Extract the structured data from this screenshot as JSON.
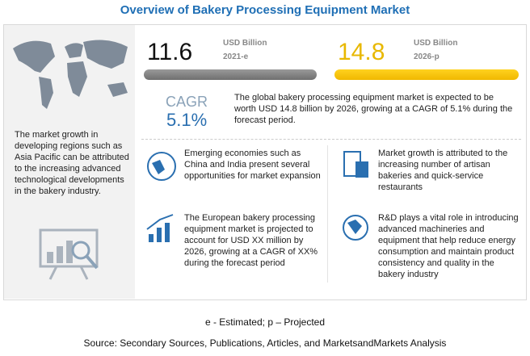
{
  "header": {
    "title": "Overview of Bakery Processing Equipment Market"
  },
  "left_panel": {
    "text": "The market growth in developing regions such as Asia Pacific can be attributed to the increasing advanced technological developments in the bakery industry."
  },
  "stats": [
    {
      "value": "11.6",
      "unit": "USD Billion",
      "year": "2021-e"
    },
    {
      "value": "14.8",
      "unit": "USD Billion",
      "year": "2026-p"
    }
  ],
  "cagr": {
    "label": "CAGR",
    "value": "5.1%"
  },
  "summary": "The global bakery processing equipment market is expected to be worth USD 14.8 billion by 2026, growing at a CAGR of 5.1% during the forecast period.",
  "points": [
    "Emerging economies such as China and India present several opportunities for market expansion",
    "Market growth is attributed to the increasing number of artisan bakeries and quick-service restaurants",
    "The European bakery processing equipment market is projected to account for USD XX million by 2026, growing at a CAGR of XX% during the forecast period",
    "R&D plays a vital role in introducing advanced machineries and equipment that help reduce energy consumption and maintain product consistency and quality in the bakery industry"
  ],
  "footer": {
    "note": "e - Estimated; p – Projected",
    "source": "Source: Secondary Sources, Publications, Articles, and MarketsandMarkets Analysis"
  }
}
